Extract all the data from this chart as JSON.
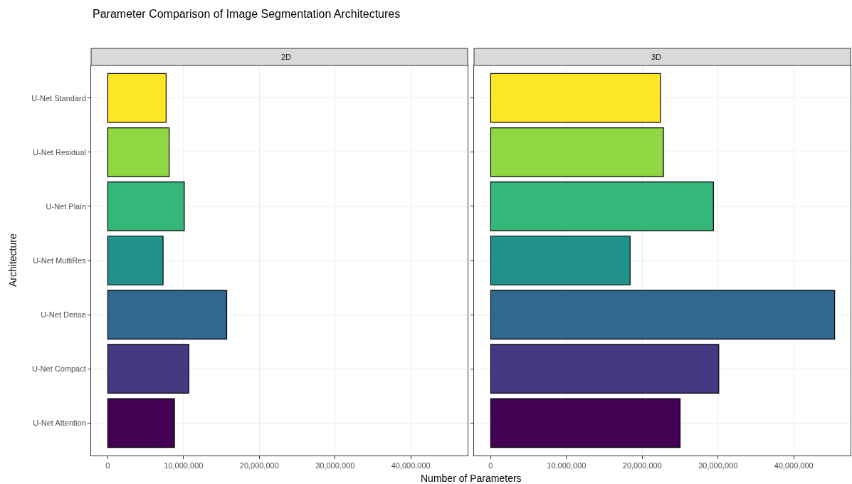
{
  "chart_data": [
    {
      "type": "bar",
      "orientation": "horizontal",
      "title": "2D",
      "xlabel": "Number of Parameters",
      "ylabel": "Architecture",
      "annotations": [
        "Parameter Comparison of Image Segmentation Architectures"
      ],
      "categories": [
        "U-Net Standard",
        "U-Net Residual",
        "U-Net Plain",
        "U-Net MultiRes",
        "U-Net Dense",
        "U-Net Compact",
        "U-Net Attention"
      ],
      "values": [
        7700000,
        8100000,
        10100000,
        7300000,
        15700000,
        10700000,
        8800000
      ],
      "colors": [
        "#fde725",
        "#90d743",
        "#35b779",
        "#21918c",
        "#31688e",
        "#443983",
        "#440154"
      ],
      "xlim": [
        -2200000,
        47500000
      ],
      "xticks": [
        0,
        {
          "value": 10000000,
          "label": "10,000,000"
        },
        {
          "value": 20000000,
          "label": "20,000,000"
        },
        {
          "value": 30000000,
          "label": "30,000,000"
        },
        {
          "value": 40000000,
          "label": "40,000,000"
        }
      ],
      "grid": true
    },
    {
      "type": "bar",
      "orientation": "horizontal",
      "title": "3D",
      "tick_labels": "x",
      "categories": [
        "U-Net Standard",
        "U-Net Residual",
        "U-Net Plain",
        "U-Net MultiRes",
        "U-Net Dense",
        "U-Net Compact",
        "U-Net Attention"
      ],
      "values": [
        22400000,
        22800000,
        29400000,
        18400000,
        45400000,
        30100000,
        25000000
      ],
      "colors": [
        "#fde725",
        "#90d743",
        "#35b779",
        "#21918c",
        "#31688e",
        "#443983",
        "#440154"
      ],
      "xlim": [
        -2200000,
        47500000
      ],
      "xticks": [
        0,
        {
          "value": 10000000,
          "label": "10,000,000"
        },
        {
          "value": 20000000,
          "label": "20,000,000"
        },
        {
          "value": 30000000,
          "label": "30,000,000"
        },
        {
          "value": 40000000,
          "label": "40,000,000"
        }
      ],
      "grid": true
    }
  ]
}
